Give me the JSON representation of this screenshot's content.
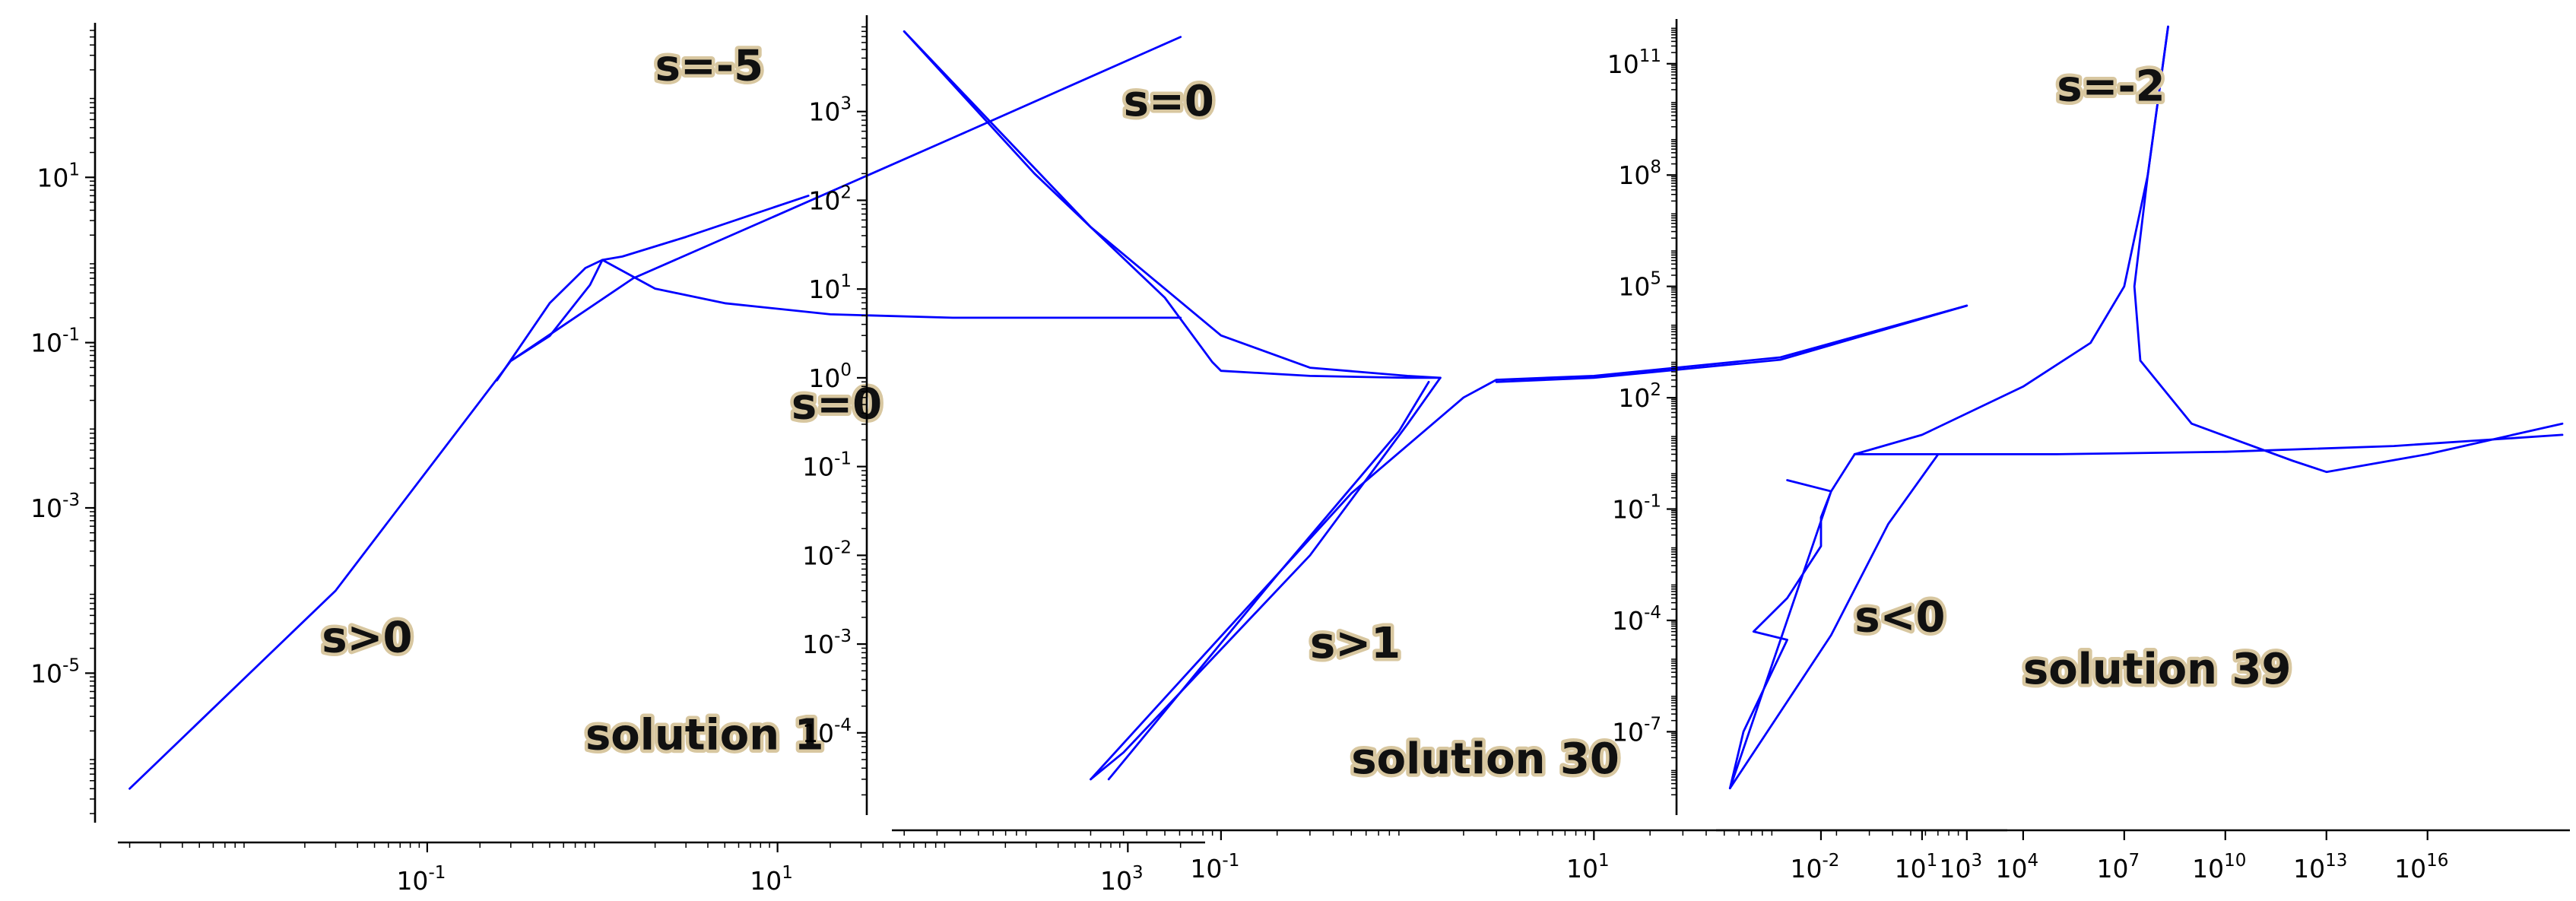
{
  "colors": {
    "line": "#0000ff",
    "axis": "#000000",
    "annotation": "#111111",
    "annotation_glow": "#d8c7a0"
  },
  "chart_data": [
    {
      "type": "line",
      "xscale": "log",
      "yscale": "log",
      "xlim": [
        0.0018,
        2500
      ],
      "ylim": [
        2e-07,
        600
      ],
      "xticks": [
        {
          "exp": "-1"
        },
        {
          "exp": "1"
        },
        {
          "exp": "3"
        }
      ],
      "yticks": [
        {
          "exp": "1"
        },
        {
          "exp": "-1"
        },
        {
          "exp": "-3"
        },
        {
          "exp": "-5"
        }
      ],
      "xtick_values": [
        -1,
        1,
        3
      ],
      "ytick_values": [
        1,
        -1,
        -3,
        -5
      ],
      "annotations": [
        {
          "text": "s=-5",
          "x": 2.0,
          "y": 150
        },
        {
          "text": "s=0",
          "x": 12,
          "y": 0.012
        },
        {
          "text": "s>0",
          "x": 0.025,
          "y": 1.8e-05
        },
        {
          "text": "solution 1",
          "x": 0.8,
          "y": 1.2e-06
        }
      ],
      "series": [
        {
          "x": [
            0.002,
            0.03,
            0.3,
            1.5,
            10,
            100,
            2000
          ],
          "y": [
            4e-07,
            0.0001,
            0.06,
            0.6,
            3.5,
            30,
            500
          ]
        },
        {
          "x": [
            1,
            2,
            5,
            20,
            100,
            2000
          ],
          "y": [
            1.0,
            0.45,
            0.3,
            0.22,
            0.2,
            0.2
          ]
        },
        {
          "x": [
            0.25,
            0.5,
            0.8,
            1.0,
            1.3,
            3,
            15
          ],
          "y": [
            0.035,
            0.3,
            0.8,
            1.0,
            1.1,
            1.9,
            6
          ]
        },
        {
          "x": [
            1.0,
            0.85,
            0.5,
            0.3
          ],
          "y": [
            1.0,
            0.5,
            0.12,
            0.06
          ]
        }
      ]
    },
    {
      "type": "line",
      "xscale": "log",
      "yscale": "log",
      "xlim": [
        0.0018,
        1500
      ],
      "ylim": [
        1.5e-05,
        10000
      ],
      "xticks": [
        {
          "exp": "-1"
        },
        {
          "exp": "1"
        },
        {
          "exp": "3"
        }
      ],
      "yticks": [
        {
          "exp": "3"
        },
        {
          "exp": "2"
        },
        {
          "exp": "1"
        },
        {
          "exp": "0"
        },
        {
          "exp": "-1"
        },
        {
          "exp": "-2"
        },
        {
          "exp": "-3"
        },
        {
          "exp": "-4"
        }
      ],
      "xtick_values": [
        -1,
        1,
        3
      ],
      "ytick_values": [
        3,
        2,
        1,
        0,
        -1,
        -2,
        -3,
        -4
      ],
      "annotations": [
        {
          "text": "s=0",
          "x": 0.03,
          "y": 900
        },
        {
          "text": "s>1",
          "x": 0.3,
          "y": 0.0007
        },
        {
          "text": "solution 30",
          "x": 0.5,
          "y": 3.5e-05
        }
      ],
      "series": [
        {
          "x": [
            0.002,
            0.01,
            0.05,
            0.09,
            0.1,
            0.3,
            1.0,
            1.5
          ],
          "y": [
            8000,
            200,
            8,
            1.5,
            1.2,
            1.05,
            1.0,
            1.0
          ]
        },
        {
          "x": [
            0.002,
            0.02,
            0.1,
            0.3,
            1.0,
            1.5
          ],
          "y": [
            8000,
            50,
            3,
            1.3,
            1.05,
            1.0
          ]
        },
        {
          "x": [
            1.5,
            1.0,
            0.3,
            0.03,
            0.02
          ],
          "y": [
            1.0,
            0.3,
            0.01,
            6e-05,
            3e-05
          ]
        },
        {
          "x": [
            1.3,
            0.9,
            0.2,
            0.025
          ],
          "y": [
            0.9,
            0.25,
            0.006,
            3e-05
          ]
        },
        {
          "x": [
            0.02,
            0.5,
            2.0,
            3.0,
            10,
            100,
            1000
          ],
          "y": [
            3e-05,
            0.05,
            0.6,
            0.95,
            1.05,
            1.7,
            6.5
          ]
        },
        {
          "x": [
            3.0,
            10,
            100,
            1000
          ],
          "y": [
            0.9,
            1.0,
            1.6,
            6.5
          ]
        }
      ]
    },
    {
      "type": "line",
      "xscale": "log",
      "yscale": "log",
      "xlim": [
        1e-05,
        1e+20
      ],
      "ylim": [
        1e-09,
        1000000000000.0
      ],
      "xticks": [
        {
          "exp": "-2"
        },
        {
          "exp": "1"
        },
        {
          "exp": "4"
        },
        {
          "exp": "7"
        },
        {
          "exp": "10"
        },
        {
          "exp": "13"
        },
        {
          "exp": "16"
        }
      ],
      "yticks": [
        {
          "exp": "11"
        },
        {
          "exp": "8"
        },
        {
          "exp": "5"
        },
        {
          "exp": "2"
        },
        {
          "exp": "-1"
        },
        {
          "exp": "-4"
        },
        {
          "exp": "-7"
        }
      ],
      "xtick_values": [
        -2,
        1,
        4,
        7,
        10,
        13,
        16
      ],
      "ytick_values": [
        11,
        8,
        5,
        2,
        -1,
        -4,
        -7
      ],
      "annotations": [
        {
          "text": "s=-2",
          "x": 100000.0,
          "y": 10000000000.0
        },
        {
          "text": "s<0",
          "x": 0.1,
          "y": 5e-05
        },
        {
          "text": "solution 39",
          "x": 10000.0,
          "y": 2e-06
        }
      ],
      "series": [
        {
          "x": [
            0.1,
            10,
            10000.0,
            1000000.0,
            10000000.0,
            50000000.0,
            200000000.0
          ],
          "y": [
            3,
            10,
            200,
            3000,
            100000,
            100000000.0,
            1000000000000.0
          ]
        },
        {
          "x": [
            200000000.0,
            50000000.0,
            20000000.0,
            30000000.0,
            1000000000.0,
            1000000000000.0,
            10000000000000.0,
            1e+16,
            1e+20
          ],
          "y": [
            1000000000000.0,
            100000000.0,
            100000.0,
            1000,
            20,
            2,
            1,
            3,
            20
          ]
        },
        {
          "x": [
            0.1,
            100000.0,
            10000000000.0,
            1000000000000000.0,
            1e+20
          ],
          "y": [
            3,
            3,
            3.5,
            5,
            10
          ]
        },
        {
          "x": [
            2e-05,
            0.02,
            0.01,
            0.01,
            0.001,
            0.0001,
            0.001,
            5e-05,
            2e-05
          ],
          "y": [
            3e-09,
            0.3,
            0.06,
            0.01,
            0.0004,
            5e-05,
            3e-05,
            1e-07,
            3e-09
          ]
        },
        {
          "x": [
            2e-05,
            0.02,
            1,
            30
          ],
          "y": [
            3e-09,
            4e-05,
            0.04,
            3
          ]
        },
        {
          "x": [
            0.001,
            0.02,
            0.1
          ],
          "y": [
            0.6,
            0.3,
            3
          ]
        }
      ]
    }
  ]
}
